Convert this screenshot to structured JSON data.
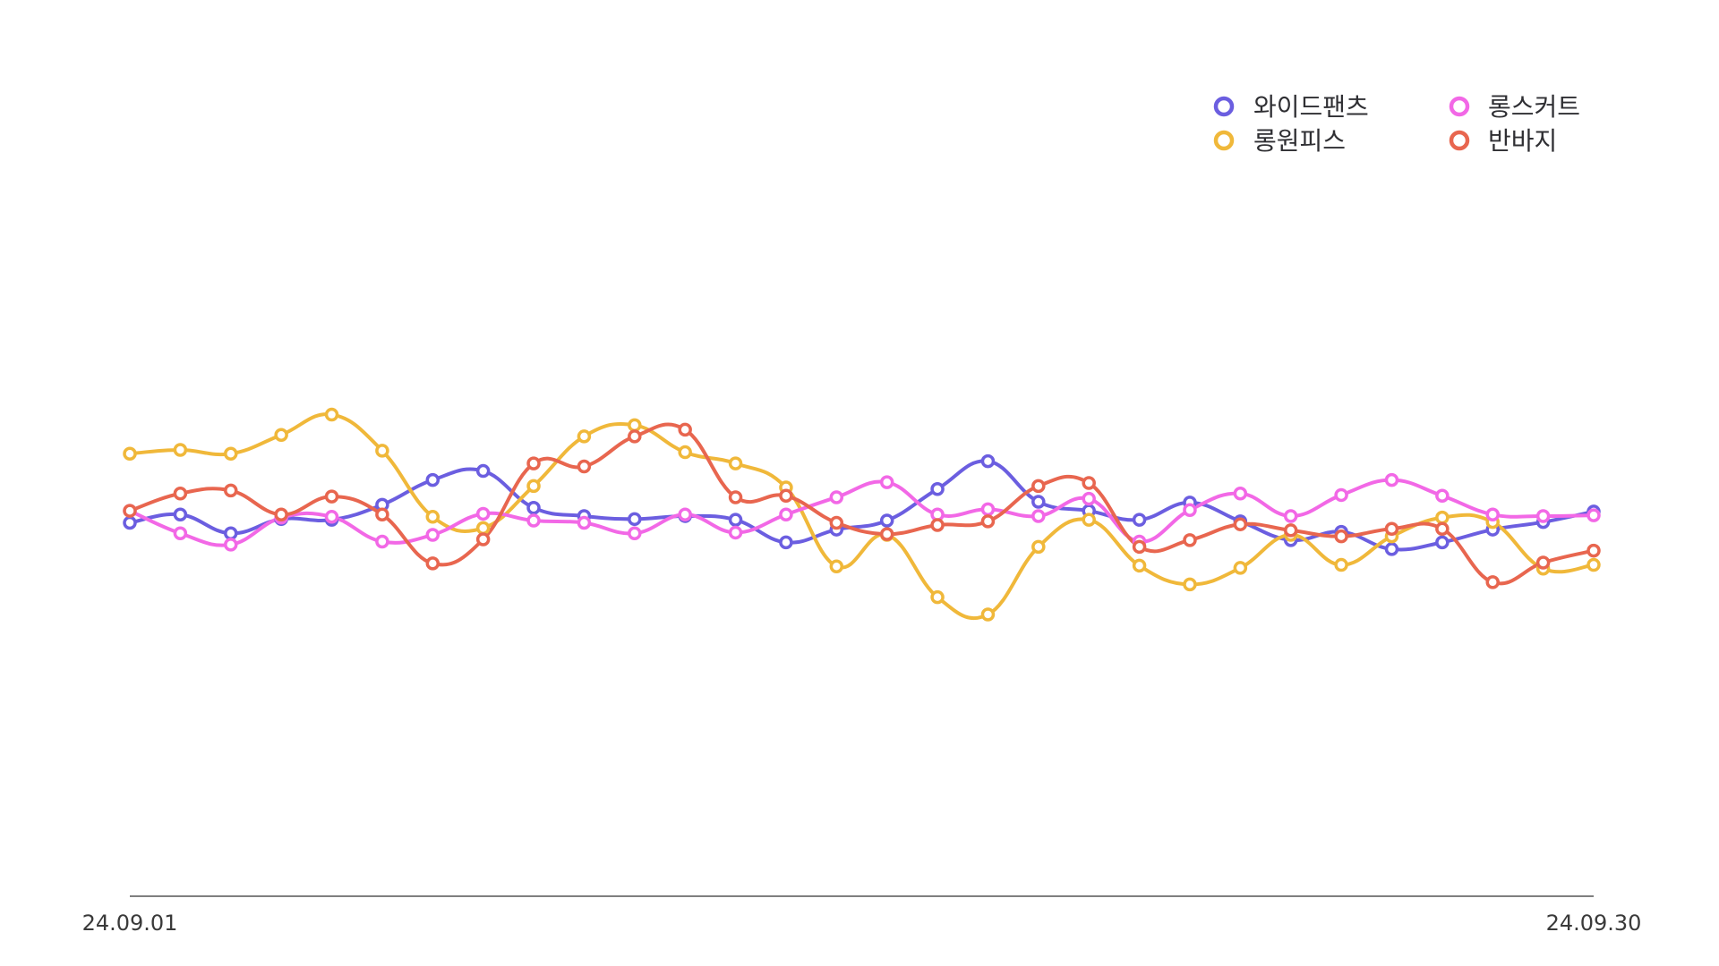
{
  "chart_data": {
    "type": "line",
    "title": "",
    "xlabel": "",
    "ylabel": "",
    "grid": false,
    "legend_position": "top-right",
    "x_tick_labels": [
      "24.09.01",
      "24.09.30"
    ],
    "x": [
      "24.09.01",
      "24.09.02",
      "24.09.03",
      "24.09.04",
      "24.09.05",
      "24.09.06",
      "24.09.07",
      "24.09.08",
      "24.09.09",
      "24.09.10",
      "24.09.11",
      "24.09.12",
      "24.09.13",
      "24.09.14",
      "24.09.15",
      "24.09.16",
      "24.09.17",
      "24.09.18",
      "24.09.19",
      "24.09.20",
      "24.09.21",
      "24.09.22",
      "24.09.23",
      "24.09.24",
      "24.09.25",
      "24.09.26",
      "24.09.27",
      "24.09.28",
      "24.09.29",
      "24.09.30"
    ],
    "ylim": [
      0,
      100
    ],
    "series": [
      {
        "name": "와이드팬츠",
        "color": "#6b5ee0",
        "values": [
          49.7,
          50.8,
          48.3,
          50.2,
          50.1,
          52.1,
          55.4,
          56.6,
          51.7,
          50.6,
          50.2,
          50.6,
          50.1,
          47.1,
          48.8,
          50.0,
          54.2,
          57.9,
          52.5,
          51.3,
          50.1,
          52.4,
          49.9,
          47.4,
          48.5,
          46.2,
          47.1,
          48.8,
          49.8,
          51.2
        ]
      },
      {
        "name": "롱원피스",
        "color": "#f0b83a",
        "values": [
          58.9,
          59.4,
          58.9,
          61.4,
          64.1,
          59.3,
          50.5,
          49.0,
          54.6,
          61.2,
          62.7,
          59.1,
          57.6,
          54.4,
          43.9,
          48.1,
          39.8,
          37.5,
          46.5,
          50.1,
          44.0,
          41.5,
          43.7,
          48.1,
          44.1,
          47.9,
          50.4,
          49.8,
          43.6,
          44.1
        ]
      },
      {
        "name": "롱스커트",
        "color": "#f268e6",
        "values": [
          51.3,
          48.3,
          46.8,
          50.4,
          50.5,
          47.2,
          48.1,
          50.9,
          50.0,
          49.7,
          48.3,
          50.8,
          48.4,
          50.8,
          53.1,
          55.1,
          50.8,
          51.5,
          50.6,
          52.9,
          47.2,
          51.4,
          53.6,
          50.6,
          53.4,
          55.4,
          53.3,
          50.8,
          50.6,
          50.7
        ]
      },
      {
        "name": "반바지",
        "color": "#e8664f",
        "values": [
          51.3,
          53.6,
          54.0,
          50.8,
          53.2,
          50.8,
          44.3,
          47.5,
          57.6,
          57.2,
          61.2,
          62.1,
          53.1,
          53.3,
          49.7,
          48.2,
          49.4,
          49.9,
          54.6,
          55.0,
          46.5,
          47.4,
          49.5,
          48.7,
          47.9,
          48.9,
          48.9,
          41.8,
          44.4,
          46.0
        ]
      }
    ]
  }
}
